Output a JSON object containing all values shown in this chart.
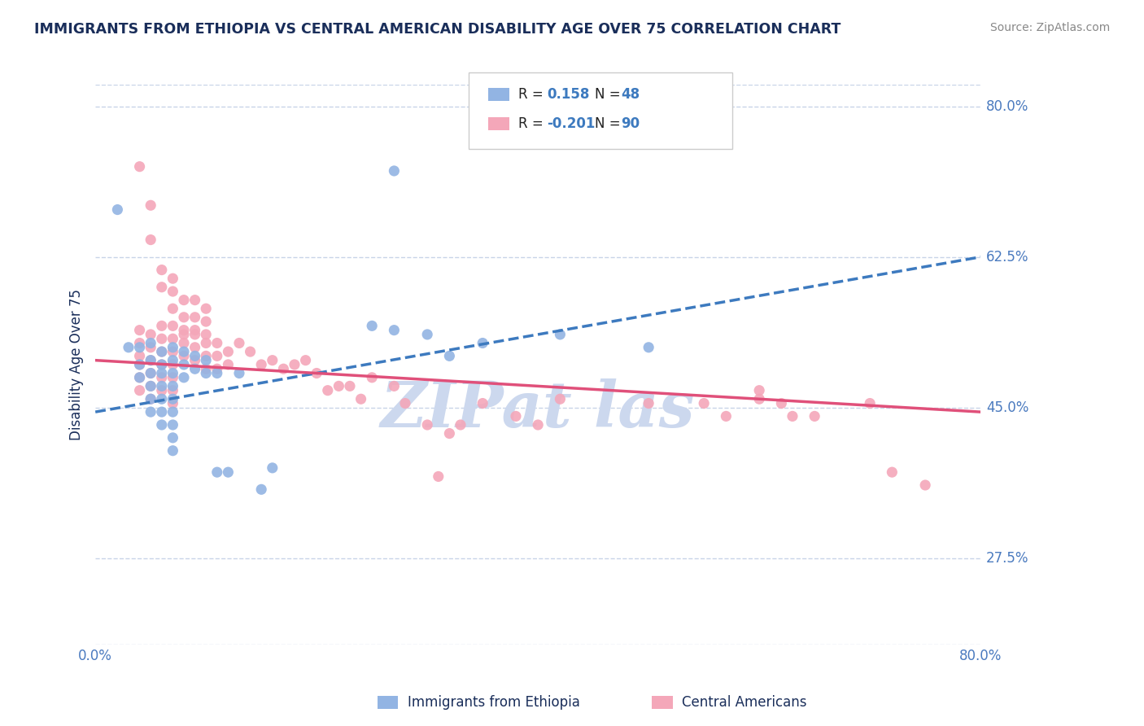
{
  "title": "IMMIGRANTS FROM ETHIOPIA VS CENTRAL AMERICAN DISABILITY AGE OVER 75 CORRELATION CHART",
  "source": "Source: ZipAtlas.com",
  "ylabel": "Disability Age Over 75",
  "xlim": [
    0.0,
    0.8
  ],
  "ylim": [
    0.175,
    0.825
  ],
  "yticks": [
    0.275,
    0.45,
    0.625,
    0.8
  ],
  "ytick_labels": [
    "27.5%",
    "45.0%",
    "62.5%",
    "80.0%"
  ],
  "xtick_labels": [
    "0.0%",
    "80.0%"
  ],
  "ethiopia_color": "#92b4e3",
  "central_color": "#f4a7b9",
  "ethiopia_line_color": "#3d7abf",
  "central_line_color": "#e0507a",
  "ethiopia_R": 0.158,
  "ethiopia_N": 48,
  "central_R": -0.201,
  "central_N": 90,
  "ethiopia_line": [
    [
      0.0,
      0.445
    ],
    [
      0.8,
      0.625
    ]
  ],
  "central_line": [
    [
      0.0,
      0.505
    ],
    [
      0.8,
      0.445
    ]
  ],
  "ethiopia_scatter": [
    [
      0.02,
      0.68
    ],
    [
      0.03,
      0.52
    ],
    [
      0.04,
      0.52
    ],
    [
      0.04,
      0.5
    ],
    [
      0.04,
      0.485
    ],
    [
      0.05,
      0.525
    ],
    [
      0.05,
      0.505
    ],
    [
      0.05,
      0.49
    ],
    [
      0.05,
      0.475
    ],
    [
      0.05,
      0.46
    ],
    [
      0.05,
      0.445
    ],
    [
      0.06,
      0.515
    ],
    [
      0.06,
      0.5
    ],
    [
      0.06,
      0.49
    ],
    [
      0.06,
      0.475
    ],
    [
      0.06,
      0.46
    ],
    [
      0.06,
      0.445
    ],
    [
      0.06,
      0.43
    ],
    [
      0.07,
      0.52
    ],
    [
      0.07,
      0.505
    ],
    [
      0.07,
      0.49
    ],
    [
      0.07,
      0.475
    ],
    [
      0.07,
      0.46
    ],
    [
      0.07,
      0.445
    ],
    [
      0.07,
      0.43
    ],
    [
      0.07,
      0.415
    ],
    [
      0.07,
      0.4
    ],
    [
      0.08,
      0.515
    ],
    [
      0.08,
      0.5
    ],
    [
      0.08,
      0.485
    ],
    [
      0.09,
      0.51
    ],
    [
      0.09,
      0.495
    ],
    [
      0.1,
      0.505
    ],
    [
      0.1,
      0.49
    ],
    [
      0.11,
      0.49
    ],
    [
      0.11,
      0.375
    ],
    [
      0.12,
      0.375
    ],
    [
      0.13,
      0.49
    ],
    [
      0.15,
      0.355
    ],
    [
      0.16,
      0.38
    ],
    [
      0.25,
      0.545
    ],
    [
      0.27,
      0.725
    ],
    [
      0.27,
      0.54
    ],
    [
      0.3,
      0.535
    ],
    [
      0.32,
      0.51
    ],
    [
      0.35,
      0.525
    ],
    [
      0.42,
      0.535
    ],
    [
      0.5,
      0.52
    ]
  ],
  "central_scatter": [
    [
      0.04,
      0.73
    ],
    [
      0.05,
      0.685
    ],
    [
      0.05,
      0.645
    ],
    [
      0.06,
      0.61
    ],
    [
      0.06,
      0.59
    ],
    [
      0.07,
      0.6
    ],
    [
      0.07,
      0.585
    ],
    [
      0.07,
      0.565
    ],
    [
      0.08,
      0.575
    ],
    [
      0.08,
      0.555
    ],
    [
      0.08,
      0.535
    ],
    [
      0.09,
      0.575
    ],
    [
      0.09,
      0.555
    ],
    [
      0.09,
      0.54
    ],
    [
      0.1,
      0.565
    ],
    [
      0.1,
      0.55
    ],
    [
      0.1,
      0.535
    ],
    [
      0.04,
      0.54
    ],
    [
      0.04,
      0.525
    ],
    [
      0.04,
      0.51
    ],
    [
      0.04,
      0.5
    ],
    [
      0.04,
      0.485
    ],
    [
      0.04,
      0.47
    ],
    [
      0.05,
      0.535
    ],
    [
      0.05,
      0.52
    ],
    [
      0.05,
      0.505
    ],
    [
      0.05,
      0.49
    ],
    [
      0.05,
      0.475
    ],
    [
      0.05,
      0.46
    ],
    [
      0.06,
      0.545
    ],
    [
      0.06,
      0.53
    ],
    [
      0.06,
      0.515
    ],
    [
      0.06,
      0.5
    ],
    [
      0.06,
      0.485
    ],
    [
      0.06,
      0.47
    ],
    [
      0.07,
      0.545
    ],
    [
      0.07,
      0.53
    ],
    [
      0.07,
      0.515
    ],
    [
      0.07,
      0.5
    ],
    [
      0.07,
      0.485
    ],
    [
      0.07,
      0.47
    ],
    [
      0.07,
      0.455
    ],
    [
      0.08,
      0.54
    ],
    [
      0.08,
      0.525
    ],
    [
      0.08,
      0.51
    ],
    [
      0.09,
      0.535
    ],
    [
      0.09,
      0.52
    ],
    [
      0.09,
      0.505
    ],
    [
      0.1,
      0.525
    ],
    [
      0.1,
      0.51
    ],
    [
      0.1,
      0.495
    ],
    [
      0.11,
      0.525
    ],
    [
      0.11,
      0.51
    ],
    [
      0.11,
      0.495
    ],
    [
      0.12,
      0.515
    ],
    [
      0.12,
      0.5
    ],
    [
      0.13,
      0.525
    ],
    [
      0.14,
      0.515
    ],
    [
      0.15,
      0.5
    ],
    [
      0.16,
      0.505
    ],
    [
      0.17,
      0.495
    ],
    [
      0.18,
      0.5
    ],
    [
      0.19,
      0.505
    ],
    [
      0.2,
      0.49
    ],
    [
      0.21,
      0.47
    ],
    [
      0.22,
      0.475
    ],
    [
      0.23,
      0.475
    ],
    [
      0.24,
      0.46
    ],
    [
      0.25,
      0.485
    ],
    [
      0.27,
      0.475
    ],
    [
      0.28,
      0.455
    ],
    [
      0.3,
      0.43
    ],
    [
      0.31,
      0.37
    ],
    [
      0.32,
      0.42
    ],
    [
      0.33,
      0.43
    ],
    [
      0.35,
      0.455
    ],
    [
      0.38,
      0.44
    ],
    [
      0.4,
      0.43
    ],
    [
      0.42,
      0.46
    ],
    [
      0.5,
      0.455
    ],
    [
      0.55,
      0.455
    ],
    [
      0.57,
      0.44
    ],
    [
      0.6,
      0.47
    ],
    [
      0.6,
      0.46
    ],
    [
      0.62,
      0.455
    ],
    [
      0.63,
      0.44
    ],
    [
      0.65,
      0.44
    ],
    [
      0.7,
      0.455
    ],
    [
      0.72,
      0.375
    ],
    [
      0.75,
      0.36
    ]
  ],
  "background_color": "#ffffff",
  "grid_color": "#c8d4e8",
  "title_color": "#1a2e5a",
  "tick_color": "#4a7abf",
  "watermark_color": "#ccd8ee"
}
